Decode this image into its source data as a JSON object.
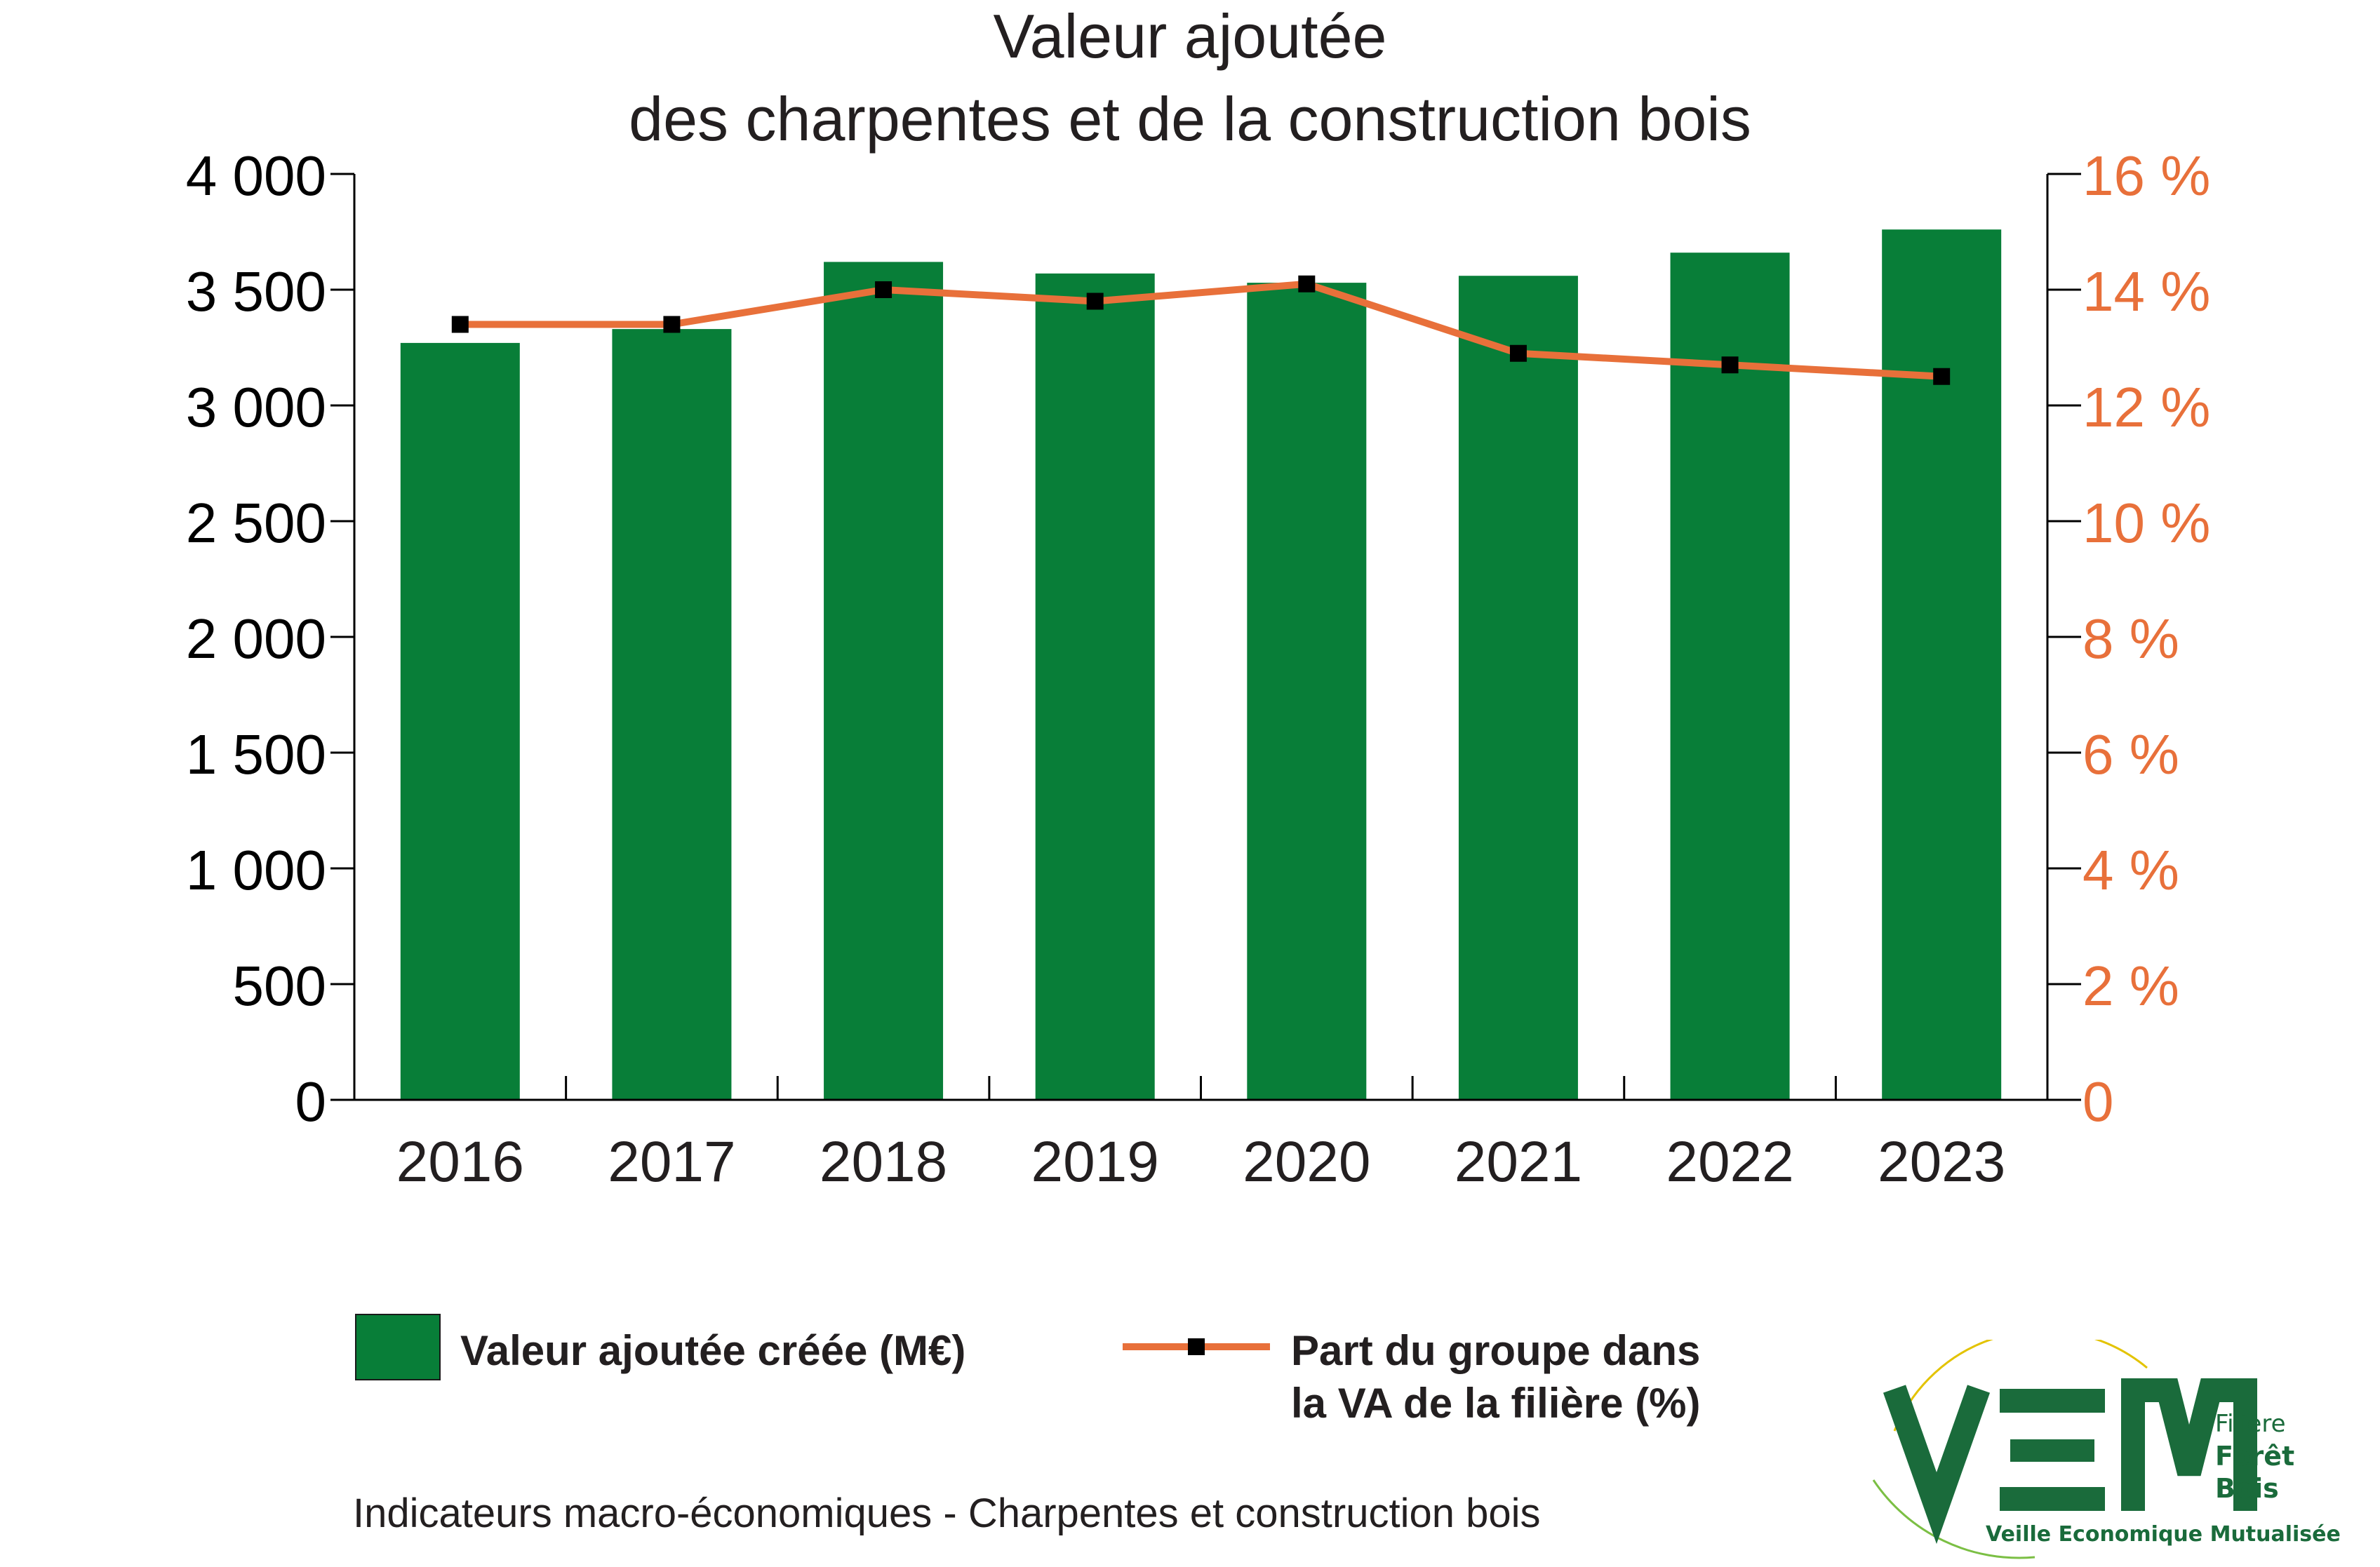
{
  "title": {
    "line1": "Valeur ajoutée",
    "line2": "des charpentes et de la construction bois"
  },
  "chart_data": {
    "type": "bar",
    "categories": [
      "2016",
      "2017",
      "2018",
      "2019",
      "2020",
      "2021",
      "2022",
      "2023"
    ],
    "series": [
      {
        "name": "Valeur ajoutée créée (M€)",
        "kind": "bar",
        "axis": "left",
        "color": "#087e38",
        "values": [
          3270,
          3330,
          3620,
          3570,
          3530,
          3560,
          3660,
          3760
        ]
      },
      {
        "name": "Part du groupe dans la VA de la filière (%)",
        "kind": "line",
        "axis": "right",
        "color": "#e8703a",
        "marker_color": "#000000",
        "values": [
          13.4,
          13.4,
          14.0,
          13.8,
          14.1,
          12.9,
          12.7,
          12.5
        ]
      }
    ],
    "ylim_left": [
      0,
      4000
    ],
    "ylim_right": [
      0,
      16
    ],
    "left_ticks": [
      "0",
      "500",
      "1 000",
      "1 500",
      "2 000",
      "2 500",
      "3 000",
      "3 500",
      "4 000"
    ],
    "right_ticks": [
      "0",
      "2 %",
      "4 %",
      "6 %",
      "8 %",
      "10 %",
      "12 %",
      "14 %",
      "16 %"
    ],
    "right_tick_color": "#e8703a",
    "grid": false,
    "legend_placement": "bottom"
  },
  "legend": {
    "bar_label": "Valeur ajoutée créée (M€)",
    "line_label": "Part du groupe dans\nla VA de la filière (%)"
  },
  "footer": "Indicateurs macro-économiques - Charpentes et construction bois",
  "logo": {
    "text": "VEM",
    "filiere": "Filière",
    "foret": "Forêt",
    "bois": "Bois",
    "tagline": "Veille Economique Mutualisée",
    "color": "#1a6b3b",
    "arc_color": "#e3c300"
  }
}
